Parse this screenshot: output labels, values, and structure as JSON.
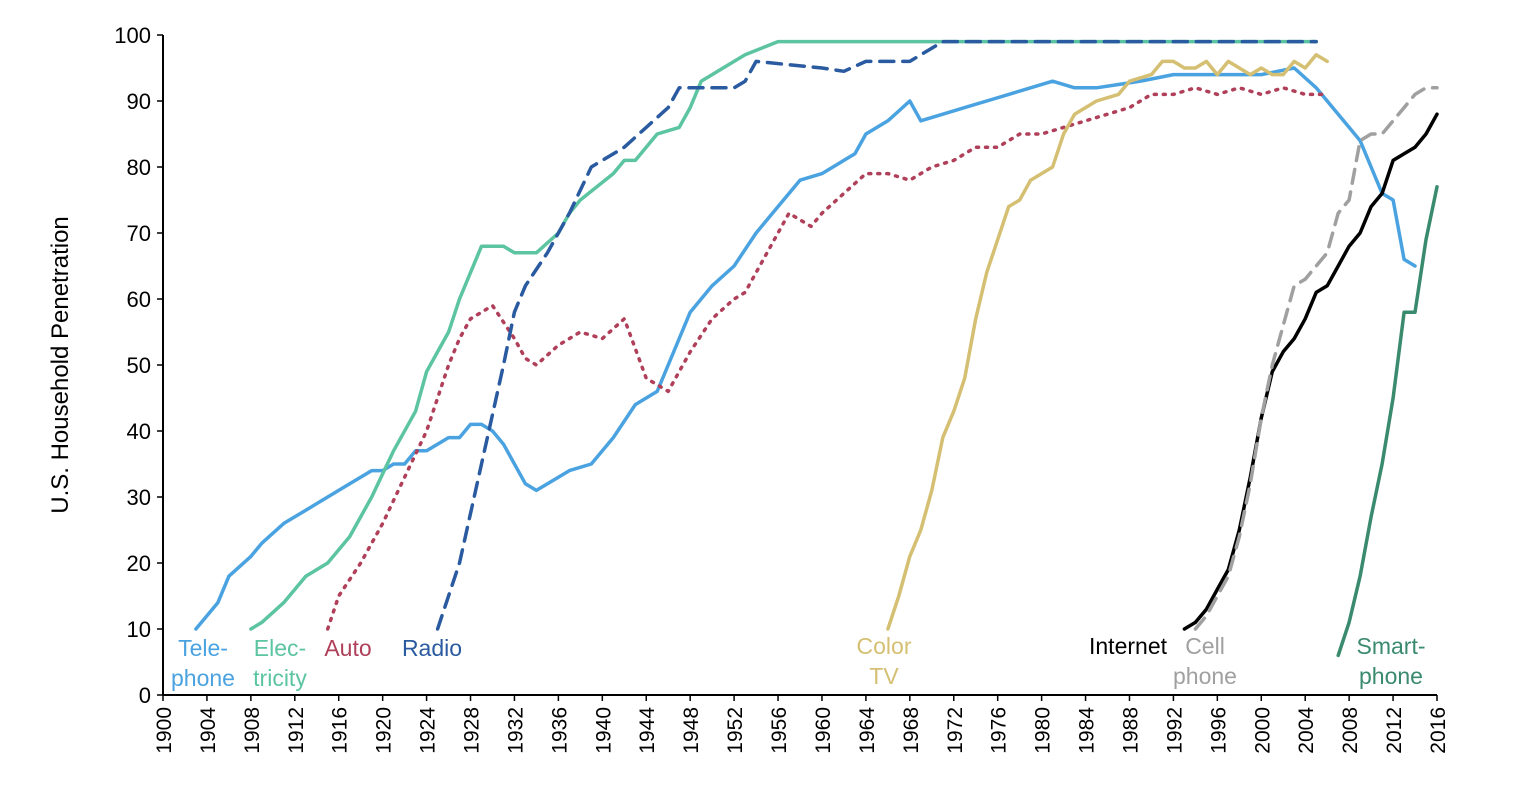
{
  "chart_data": {
    "type": "line",
    "title": "",
    "xlabel": "",
    "ylabel": "U.S. Household Penetration",
    "xlim": [
      1900,
      2016
    ],
    "ylim": [
      0,
      100
    ],
    "xticks": [
      1900,
      1904,
      1908,
      1912,
      1916,
      1920,
      1924,
      1928,
      1932,
      1936,
      1940,
      1944,
      1948,
      1952,
      1956,
      1960,
      1964,
      1968,
      1972,
      1976,
      1980,
      1984,
      1988,
      1992,
      1996,
      2000,
      2004,
      2008,
      2012,
      2016
    ],
    "yticks": [
      0,
      10,
      20,
      30,
      40,
      50,
      60,
      70,
      80,
      90,
      100
    ],
    "grid": false,
    "legend": "inline labels",
    "series": [
      {
        "name": "Tele-\nphone",
        "color": "#4aa3e0",
        "style": "solid",
        "points": [
          [
            1903,
            10
          ],
          [
            1905,
            14
          ],
          [
            1906,
            18
          ],
          [
            1908,
            21
          ],
          [
            1909,
            23
          ],
          [
            1911,
            26
          ],
          [
            1913,
            28
          ],
          [
            1915,
            30
          ],
          [
            1917,
            32
          ],
          [
            1919,
            34
          ],
          [
            1920,
            34
          ],
          [
            1921,
            35
          ],
          [
            1922,
            35
          ],
          [
            1923,
            37
          ],
          [
            1924,
            37
          ],
          [
            1926,
            39
          ],
          [
            1927,
            39
          ],
          [
            1928,
            41
          ],
          [
            1929,
            41
          ],
          [
            1930,
            40
          ],
          [
            1931,
            38
          ],
          [
            1933,
            32
          ],
          [
            1934,
            31
          ],
          [
            1936,
            33
          ],
          [
            1937,
            34
          ],
          [
            1939,
            35
          ],
          [
            1941,
            39
          ],
          [
            1943,
            44
          ],
          [
            1945,
            46
          ],
          [
            1946,
            50
          ],
          [
            1948,
            58
          ],
          [
            1950,
            62
          ],
          [
            1952,
            65
          ],
          [
            1954,
            70
          ],
          [
            1956,
            74
          ],
          [
            1958,
            78
          ],
          [
            1960,
            79
          ],
          [
            1962,
            81
          ],
          [
            1963,
            82
          ],
          [
            1964,
            85
          ],
          [
            1966,
            87
          ],
          [
            1968,
            90
          ],
          [
            1969,
            87
          ],
          [
            1971,
            88
          ],
          [
            1973,
            89
          ],
          [
            1975,
            90
          ],
          [
            1977,
            91
          ],
          [
            1979,
            92
          ],
          [
            1981,
            93
          ],
          [
            1983,
            92
          ],
          [
            1985,
            92
          ],
          [
            1987,
            92.5
          ],
          [
            1989,
            93
          ],
          [
            1992,
            94
          ],
          [
            2000,
            94
          ],
          [
            2003,
            95
          ],
          [
            2005,
            92
          ],
          [
            2007,
            88
          ],
          [
            2009,
            84
          ],
          [
            2010,
            80
          ],
          [
            2011,
            76
          ],
          [
            2012,
            75
          ],
          [
            2013,
            66
          ],
          [
            2014,
            65
          ]
        ]
      },
      {
        "name": "Elec-\ntricity",
        "color": "#5cc4a0",
        "style": "solid",
        "points": [
          [
            1908,
            10
          ],
          [
            1909,
            11
          ],
          [
            1911,
            14
          ],
          [
            1913,
            18
          ],
          [
            1915,
            20
          ],
          [
            1917,
            24
          ],
          [
            1919,
            30
          ],
          [
            1921,
            37
          ],
          [
            1923,
            43
          ],
          [
            1924,
            49
          ],
          [
            1926,
            55
          ],
          [
            1927,
            60
          ],
          [
            1928,
            64
          ],
          [
            1929,
            68
          ],
          [
            1931,
            68
          ],
          [
            1932,
            67
          ],
          [
            1934,
            67
          ],
          [
            1936,
            70
          ],
          [
            1937,
            73
          ],
          [
            1938,
            75
          ],
          [
            1941,
            79
          ],
          [
            1942,
            81
          ],
          [
            1943,
            81
          ],
          [
            1944,
            83
          ],
          [
            1945,
            85
          ],
          [
            1947,
            86
          ],
          [
            1948,
            89
          ],
          [
            1949,
            93
          ],
          [
            1951,
            95
          ],
          [
            1953,
            97
          ],
          [
            1956,
            99
          ],
          [
            2005,
            99
          ]
        ]
      },
      {
        "name": "Auto",
        "color": "#b0405a",
        "style": "dotted",
        "points": [
          [
            1915,
            10
          ],
          [
            1916,
            15
          ],
          [
            1918,
            20
          ],
          [
            1920,
            26
          ],
          [
            1922,
            33
          ],
          [
            1924,
            40
          ],
          [
            1926,
            50
          ],
          [
            1927,
            54
          ],
          [
            1928,
            57
          ],
          [
            1930,
            59
          ],
          [
            1932,
            54
          ],
          [
            1933,
            51
          ],
          [
            1934,
            50
          ],
          [
            1936,
            53
          ],
          [
            1938,
            55
          ],
          [
            1940,
            54
          ],
          [
            1942,
            57
          ],
          [
            1944,
            48
          ],
          [
            1946,
            46
          ],
          [
            1948,
            52
          ],
          [
            1950,
            57
          ],
          [
            1952,
            60
          ],
          [
            1953,
            61
          ],
          [
            1956,
            70
          ],
          [
            1957,
            73
          ],
          [
            1959,
            71
          ],
          [
            1960,
            73
          ],
          [
            1962,
            76
          ],
          [
            1964,
            79
          ],
          [
            1966,
            79
          ],
          [
            1968,
            78
          ],
          [
            1970,
            80
          ],
          [
            1972,
            81
          ],
          [
            1974,
            83
          ],
          [
            1976,
            83
          ],
          [
            1978,
            85
          ],
          [
            1980,
            85
          ],
          [
            1982,
            86
          ],
          [
            1984,
            87
          ],
          [
            1986,
            88
          ],
          [
            1988,
            89
          ],
          [
            1990,
            91
          ],
          [
            1992,
            91
          ],
          [
            1994,
            92
          ],
          [
            1996,
            91
          ],
          [
            1998,
            92
          ],
          [
            2000,
            91
          ],
          [
            2002,
            92
          ],
          [
            2004,
            91
          ],
          [
            2006,
            91
          ]
        ]
      },
      {
        "name": "Radio",
        "color": "#2a5aa0",
        "style": "dashed",
        "points": [
          [
            1925,
            10
          ],
          [
            1927,
            20
          ],
          [
            1929,
            35
          ],
          [
            1931,
            50
          ],
          [
            1932,
            58
          ],
          [
            1933,
            62
          ],
          [
            1935,
            67
          ],
          [
            1937,
            73
          ],
          [
            1939,
            80
          ],
          [
            1940,
            81
          ],
          [
            1942,
            83
          ],
          [
            1944,
            86
          ],
          [
            1946,
            89
          ],
          [
            1947,
            92
          ],
          [
            1949,
            92
          ],
          [
            1950,
            92
          ],
          [
            1952,
            92
          ],
          [
            1953,
            93
          ],
          [
            1954,
            96
          ],
          [
            1960,
            95
          ],
          [
            1962,
            94.5
          ],
          [
            1964,
            96
          ],
          [
            1968,
            96
          ],
          [
            1971,
            99
          ],
          [
            2005,
            99
          ]
        ]
      },
      {
        "name": "Color\nTV",
        "color": "#d4bf72",
        "style": "solid",
        "points": [
          [
            1966,
            10
          ],
          [
            1967,
            15
          ],
          [
            1968,
            21
          ],
          [
            1969,
            25
          ],
          [
            1970,
            31
          ],
          [
            1971,
            39
          ],
          [
            1972,
            43
          ],
          [
            1973,
            48
          ],
          [
            1974,
            57
          ],
          [
            1975,
            64
          ],
          [
            1976,
            69
          ],
          [
            1977,
            74
          ],
          [
            1978,
            75
          ],
          [
            1979,
            78
          ],
          [
            1980,
            79
          ],
          [
            1981,
            80
          ],
          [
            1982,
            85
          ],
          [
            1983,
            88
          ],
          [
            1985,
            90
          ],
          [
            1987,
            91
          ],
          [
            1988,
            93
          ],
          [
            1990,
            94
          ],
          [
            1991,
            96
          ],
          [
            1992,
            96
          ],
          [
            1993,
            95
          ],
          [
            1994,
            95
          ],
          [
            1995,
            96
          ],
          [
            1996,
            94
          ],
          [
            1997,
            96
          ],
          [
            1998,
            95
          ],
          [
            1999,
            94
          ],
          [
            2000,
            95
          ],
          [
            2001,
            94
          ],
          [
            2002,
            94
          ],
          [
            2003,
            96
          ],
          [
            2004,
            95
          ],
          [
            2005,
            97
          ],
          [
            2006,
            96
          ]
        ]
      },
      {
        "name": "Internet",
        "color": "#000000",
        "style": "solid",
        "points": [
          [
            1993,
            10
          ],
          [
            1994,
            11
          ],
          [
            1995,
            13
          ],
          [
            1996,
            16
          ],
          [
            1997,
            19
          ],
          [
            1998,
            25
          ],
          [
            1999,
            33
          ],
          [
            2000,
            42
          ],
          [
            2001,
            49
          ],
          [
            2002,
            52
          ],
          [
            2003,
            54
          ],
          [
            2004,
            57
          ],
          [
            2005,
            61
          ],
          [
            2006,
            62
          ],
          [
            2007,
            65
          ],
          [
            2008,
            68
          ],
          [
            2009,
            70
          ],
          [
            2010,
            74
          ],
          [
            2011,
            76
          ],
          [
            2012,
            81
          ],
          [
            2013,
            82
          ],
          [
            2014,
            83
          ],
          [
            2015,
            85
          ],
          [
            2016,
            88
          ]
        ]
      },
      {
        "name": "Cell\nphone",
        "color": "#a0a0a0",
        "style": "dashed",
        "points": [
          [
            1994,
            10
          ],
          [
            1995,
            12
          ],
          [
            1997,
            18
          ],
          [
            1998,
            24
          ],
          [
            1999,
            32
          ],
          [
            2000,
            42
          ],
          [
            2001,
            50
          ],
          [
            2002,
            56
          ],
          [
            2003,
            62
          ],
          [
            2004,
            63
          ],
          [
            2005,
            65
          ],
          [
            2006,
            67
          ],
          [
            2007,
            73
          ],
          [
            2008,
            75
          ],
          [
            2009,
            84
          ],
          [
            2010,
            85
          ],
          [
            2011,
            85
          ],
          [
            2012,
            87
          ],
          [
            2013,
            89
          ],
          [
            2014,
            91
          ],
          [
            2015,
            92
          ],
          [
            2016,
            92
          ]
        ]
      },
      {
        "name": "Smart-\nphone",
        "color": "#3a8a6e",
        "style": "solid",
        "points": [
          [
            2007,
            6
          ],
          [
            2008,
            11
          ],
          [
            2009,
            18
          ],
          [
            2010,
            27
          ],
          [
            2011,
            35
          ],
          [
            2012,
            45
          ],
          [
            2013,
            58
          ],
          [
            2014,
            58
          ],
          [
            2015,
            69
          ],
          [
            2016,
            77
          ]
        ]
      }
    ]
  }
}
